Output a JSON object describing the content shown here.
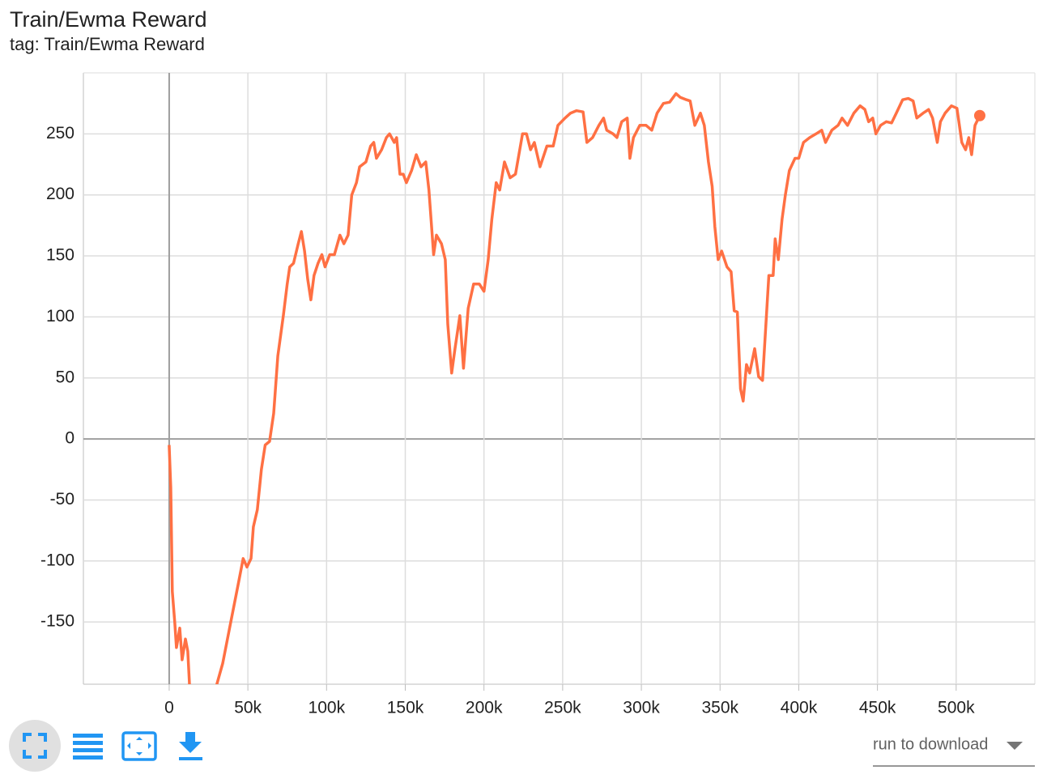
{
  "chart_data": {
    "type": "line",
    "title": "Train/Ewma Reward",
    "subtitle": "tag: Train/Ewma Reward",
    "x": [
      0,
      1000,
      2000,
      3600,
      4600,
      6700,
      8200,
      10300,
      11800,
      12900,
      21000,
      30300,
      34000,
      39000,
      44000,
      47000,
      49400,
      52000,
      53500,
      56000,
      58600,
      61000,
      63800,
      66400,
      69000,
      72500,
      75000,
      76600,
      79000,
      82000,
      84000,
      86000,
      88000,
      90000,
      92000,
      94600,
      97000,
      99000,
      102000,
      105000,
      108500,
      111000,
      113700,
      116000,
      119000,
      121000,
      125000,
      128000,
      130000,
      131700,
      135000,
      138000,
      140000,
      143000,
      144500,
      146600,
      148700,
      150700,
      154000,
      157000,
      160000,
      163000,
      165000,
      168000,
      169800,
      173000,
      175400,
      177000,
      179500,
      181600,
      184700,
      187000,
      190000,
      193400,
      197000,
      200000,
      202700,
      205000,
      207800,
      210000,
      213000,
      216600,
      220000,
      224500,
      227000,
      229600,
      232000,
      235600,
      240000,
      244000,
      247000,
      251500,
      255000,
      258700,
      263000,
      265400,
      269000,
      273000,
      276000,
      278000,
      282000,
      284500,
      287500,
      291000,
      292700,
      295000,
      299000,
      303000,
      306600,
      310000,
      314000,
      318000,
      322000,
      324600,
      328700,
      331000,
      334000,
      337500,
      340000,
      342600,
      345000,
      346700,
      348800,
      351000,
      354400,
      357000,
      359000,
      361000,
      363000,
      364700,
      366800,
      368800,
      372000,
      374500,
      377000,
      379000,
      381000,
      383700,
      385000,
      387000,
      389400,
      391500,
      394000,
      397600,
      400000,
      403000,
      407000,
      411000,
      414600,
      417000,
      421000,
      425000,
      427500,
      431000,
      435000,
      439000,
      442000,
      444400,
      447000,
      449000,
      452000,
      455600,
      459000,
      462000,
      466000,
      469600,
      472700,
      475000,
      479000,
      482500,
      485000,
      488000,
      490000,
      493000,
      497000,
      500500,
      503600,
      506000,
      508000,
      509800,
      512000,
      515000
    ],
    "series": [
      {
        "name": "Train/Ewma Reward",
        "color": "#ff7043",
        "values": [
          -5,
          -40,
          -125,
          -151,
          -171,
          -155,
          -181,
          -164,
          -174,
          -201,
          -260,
          -201,
          -184,
          -151,
          -118,
          -98,
          -105,
          -98,
          -72,
          -58,
          -25,
          -5,
          -2,
          21,
          68,
          101,
          127,
          141,
          144,
          160,
          170,
          154,
          131,
          114,
          134,
          144,
          151,
          141,
          151,
          151,
          167,
          160,
          167,
          200,
          210,
          223,
          227,
          240,
          243,
          230,
          237,
          247,
          250,
          243,
          247,
          217,
          217,
          210,
          220,
          233,
          223,
          227,
          204,
          151,
          167,
          160,
          147,
          94,
          54,
          74,
          101,
          58,
          107,
          127,
          127,
          121,
          147,
          180,
          210,
          204,
          227,
          214,
          217,
          250,
          250,
          237,
          243,
          223,
          240,
          240,
          257,
          263,
          267,
          269,
          268,
          243,
          247,
          257,
          263,
          253,
          250,
          247,
          260,
          263,
          230,
          247,
          257,
          257,
          253,
          267,
          275,
          276,
          283,
          280,
          278,
          277,
          257,
          267,
          257,
          227,
          207,
          174,
          147,
          154,
          141,
          137,
          105,
          104,
          41,
          31,
          61,
          54,
          74,
          51,
          48,
          91,
          134,
          134,
          164,
          147,
          180,
          200,
          220,
          230,
          230,
          243,
          247,
          250,
          253,
          243,
          253,
          257,
          263,
          257,
          267,
          273,
          270,
          260,
          263,
          250,
          257,
          260,
          259,
          267,
          278,
          279,
          277,
          263,
          267,
          270,
          263,
          243,
          260,
          267,
          273,
          271,
          243,
          237,
          247,
          233,
          257,
          265
        ]
      }
    ],
    "xlim": [
      -54500,
      550000
    ],
    "ylim": [
      -201,
      300
    ],
    "xticks": [
      {
        "value": 0,
        "label": "0"
      },
      {
        "value": 50000,
        "label": "50k"
      },
      {
        "value": 100000,
        "label": "100k"
      },
      {
        "value": 150000,
        "label": "150k"
      },
      {
        "value": 200000,
        "label": "200k"
      },
      {
        "value": 250000,
        "label": "250k"
      },
      {
        "value": 300000,
        "label": "300k"
      },
      {
        "value": 350000,
        "label": "350k"
      },
      {
        "value": 400000,
        "label": "400k"
      },
      {
        "value": 450000,
        "label": "450k"
      },
      {
        "value": 500000,
        "label": "500k"
      }
    ],
    "yticks": [
      -150,
      -100,
      -50,
      0,
      50,
      100,
      150,
      200,
      250
    ],
    "grid": true
  },
  "toolbar": {
    "select_label": "run to download"
  }
}
